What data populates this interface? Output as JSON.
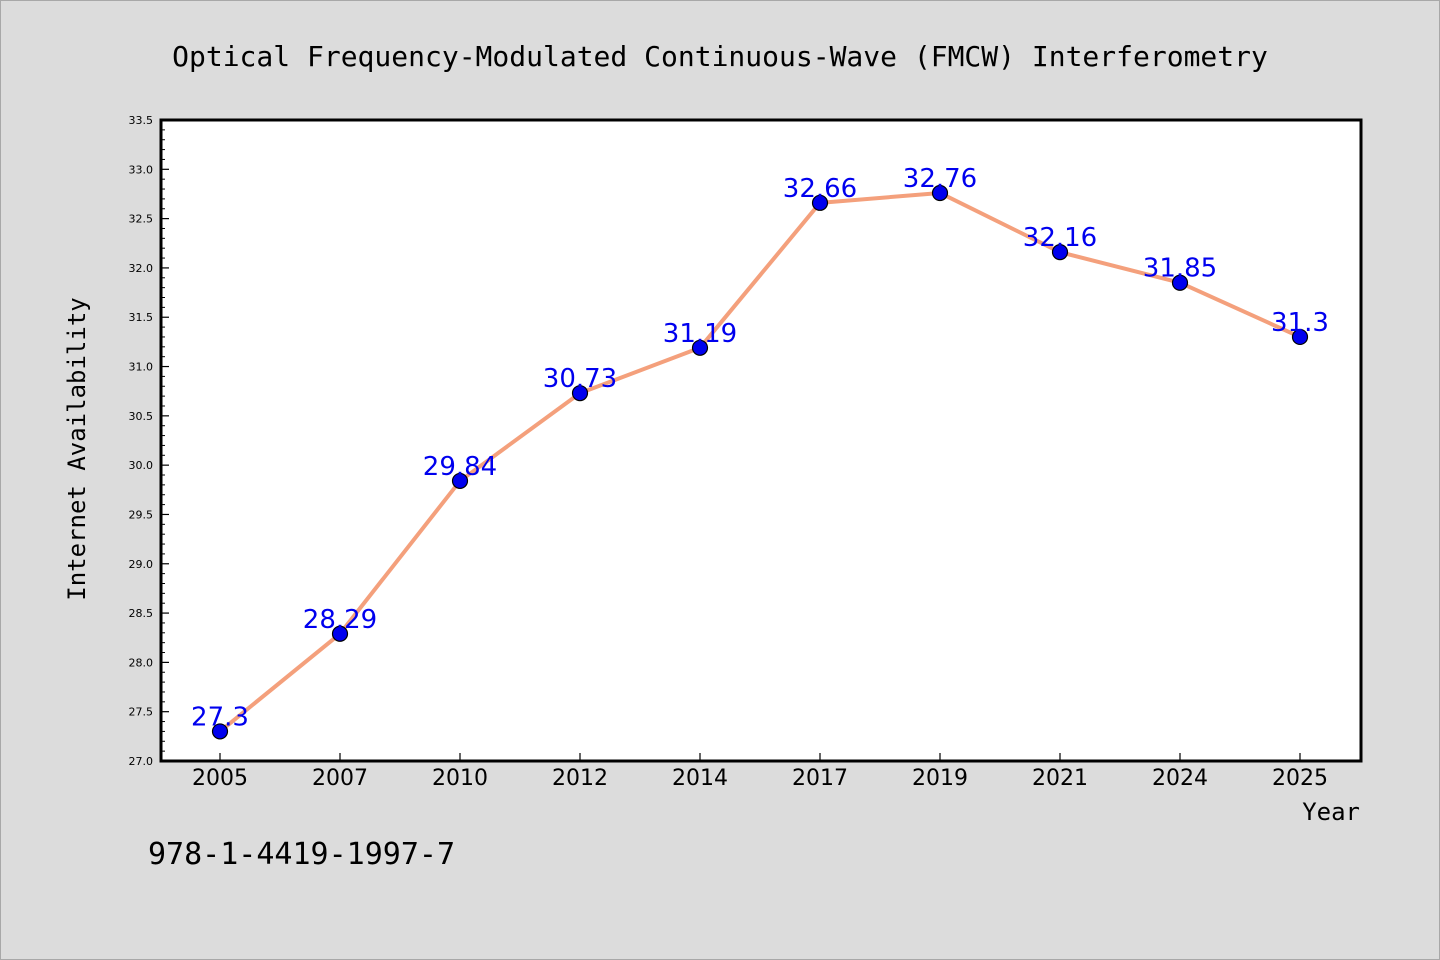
{
  "chart_data": {
    "type": "line",
    "title": "Optical Frequency-Modulated Continuous-Wave (FMCW) Interferometry",
    "xlabel": "Year",
    "ylabel": "Internet Availability",
    "categories": [
      "2005",
      "2007",
      "2010",
      "2012",
      "2014",
      "2017",
      "2019",
      "2021",
      "2024",
      "2025"
    ],
    "values": [
      27.3,
      28.29,
      29.84,
      30.73,
      31.19,
      32.66,
      32.76,
      32.16,
      31.85,
      31.3
    ],
    "data_labels": [
      "27.3",
      "28.29",
      "29.84",
      "30.73",
      "31.19",
      "32.66",
      "32.76",
      "32.16",
      "31.85",
      "31.3"
    ],
    "ylim": [
      27.0,
      33.5
    ],
    "yticks": [
      "27.0",
      "27.5",
      "28.0",
      "28.5",
      "29.0",
      "29.5",
      "30.0",
      "30.5",
      "31.0",
      "31.5",
      "32.0",
      "32.5",
      "33.0",
      "33.5"
    ],
    "grid": false,
    "legend": "none",
    "colors": {
      "line": "#f4a07c",
      "marker": "#0000ee",
      "data_label": "#0000ee",
      "background": "#dcdcdc",
      "plot_area": "#ffffff"
    }
  },
  "footer": {
    "code": "978-1-4419-1997-7"
  }
}
